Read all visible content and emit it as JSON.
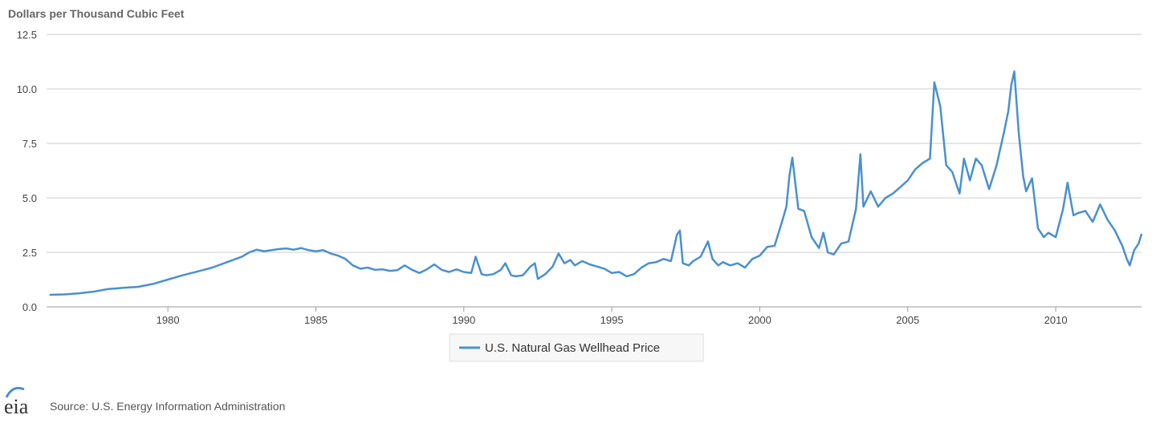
{
  "chart_data": {
    "type": "line",
    "y_unit_label": "Dollars per Thousand Cubic Feet",
    "ylim": [
      0,
      12.5
    ],
    "y_ticks": [
      "0.0",
      "2.5",
      "5.0",
      "7.5",
      "10.0",
      "12.5"
    ],
    "xlim": [
      1975.9,
      2012.9
    ],
    "x_ticks": [
      "1980",
      "1985",
      "1990",
      "1995",
      "2000",
      "2005",
      "2010"
    ],
    "grid": true,
    "legend_position": "bottom-center",
    "series": [
      {
        "name": "U.S. Natural Gas Wellhead Price",
        "color": "#4a90d0",
        "points": [
          [
            1976.0,
            0.55
          ],
          [
            1976.5,
            0.57
          ],
          [
            1977.0,
            0.62
          ],
          [
            1977.5,
            0.7
          ],
          [
            1978.0,
            0.82
          ],
          [
            1978.5,
            0.87
          ],
          [
            1979.0,
            0.92
          ],
          [
            1979.5,
            1.05
          ],
          [
            1980.0,
            1.25
          ],
          [
            1980.5,
            1.45
          ],
          [
            1981.0,
            1.62
          ],
          [
            1981.5,
            1.8
          ],
          [
            1982.0,
            2.05
          ],
          [
            1982.5,
            2.3
          ],
          [
            1982.75,
            2.5
          ],
          [
            1983.0,
            2.62
          ],
          [
            1983.25,
            2.55
          ],
          [
            1983.5,
            2.6
          ],
          [
            1983.75,
            2.65
          ],
          [
            1984.0,
            2.68
          ],
          [
            1984.25,
            2.62
          ],
          [
            1984.5,
            2.7
          ],
          [
            1984.75,
            2.6
          ],
          [
            1985.0,
            2.55
          ],
          [
            1985.25,
            2.6
          ],
          [
            1985.5,
            2.45
          ],
          [
            1985.75,
            2.35
          ],
          [
            1986.0,
            2.2
          ],
          [
            1986.25,
            1.9
          ],
          [
            1986.5,
            1.75
          ],
          [
            1986.75,
            1.8
          ],
          [
            1987.0,
            1.7
          ],
          [
            1987.25,
            1.72
          ],
          [
            1987.5,
            1.65
          ],
          [
            1987.75,
            1.68
          ],
          [
            1988.0,
            1.9
          ],
          [
            1988.25,
            1.7
          ],
          [
            1988.5,
            1.55
          ],
          [
            1988.75,
            1.72
          ],
          [
            1989.0,
            1.95
          ],
          [
            1989.25,
            1.7
          ],
          [
            1989.5,
            1.6
          ],
          [
            1989.75,
            1.72
          ],
          [
            1990.0,
            1.6
          ],
          [
            1990.25,
            1.55
          ],
          [
            1990.4,
            2.3
          ],
          [
            1990.6,
            1.5
          ],
          [
            1990.75,
            1.45
          ],
          [
            1991.0,
            1.5
          ],
          [
            1991.25,
            1.7
          ],
          [
            1991.4,
            2.0
          ],
          [
            1991.6,
            1.45
          ],
          [
            1991.75,
            1.4
          ],
          [
            1992.0,
            1.45
          ],
          [
            1992.25,
            1.85
          ],
          [
            1992.4,
            2.0
          ],
          [
            1992.5,
            1.28
          ],
          [
            1992.75,
            1.5
          ],
          [
            1993.0,
            1.85
          ],
          [
            1993.2,
            2.45
          ],
          [
            1993.4,
            2.0
          ],
          [
            1993.6,
            2.15
          ],
          [
            1993.75,
            1.9
          ],
          [
            1994.0,
            2.1
          ],
          [
            1994.25,
            1.95
          ],
          [
            1994.5,
            1.85
          ],
          [
            1994.75,
            1.75
          ],
          [
            1995.0,
            1.55
          ],
          [
            1995.25,
            1.6
          ],
          [
            1995.5,
            1.4
          ],
          [
            1995.75,
            1.5
          ],
          [
            1996.0,
            1.8
          ],
          [
            1996.25,
            2.0
          ],
          [
            1996.5,
            2.05
          ],
          [
            1996.75,
            2.2
          ],
          [
            1997.0,
            2.1
          ],
          [
            1997.2,
            3.3
          ],
          [
            1997.3,
            3.5
          ],
          [
            1997.4,
            2.0
          ],
          [
            1997.6,
            1.9
          ],
          [
            1997.75,
            2.1
          ],
          [
            1998.0,
            2.3
          ],
          [
            1998.25,
            3.0
          ],
          [
            1998.4,
            2.2
          ],
          [
            1998.6,
            1.9
          ],
          [
            1998.75,
            2.05
          ],
          [
            1999.0,
            1.9
          ],
          [
            1999.25,
            2.0
          ],
          [
            1999.5,
            1.8
          ],
          [
            1999.75,
            2.2
          ],
          [
            2000.0,
            2.35
          ],
          [
            2000.25,
            2.75
          ],
          [
            2000.5,
            2.8
          ],
          [
            2000.75,
            3.9
          ],
          [
            2000.9,
            4.6
          ],
          [
            2001.0,
            6.0
          ],
          [
            2001.1,
            6.85
          ],
          [
            2001.3,
            4.5
          ],
          [
            2001.5,
            4.4
          ],
          [
            2001.75,
            3.2
          ],
          [
            2002.0,
            2.7
          ],
          [
            2002.15,
            3.4
          ],
          [
            2002.3,
            2.5
          ],
          [
            2002.5,
            2.4
          ],
          [
            2002.75,
            2.9
          ],
          [
            2003.0,
            3.0
          ],
          [
            2003.25,
            4.5
          ],
          [
            2003.4,
            7.0
          ],
          [
            2003.5,
            4.6
          ],
          [
            2003.75,
            5.3
          ],
          [
            2004.0,
            4.6
          ],
          [
            2004.25,
            5.0
          ],
          [
            2004.5,
            5.2
          ],
          [
            2004.75,
            5.5
          ],
          [
            2005.0,
            5.8
          ],
          [
            2005.25,
            6.3
          ],
          [
            2005.5,
            6.6
          ],
          [
            2005.75,
            6.8
          ],
          [
            2005.9,
            10.3
          ],
          [
            2006.1,
            9.2
          ],
          [
            2006.3,
            6.5
          ],
          [
            2006.5,
            6.2
          ],
          [
            2006.75,
            5.2
          ],
          [
            2006.9,
            6.8
          ],
          [
            2007.1,
            5.8
          ],
          [
            2007.3,
            6.8
          ],
          [
            2007.5,
            6.5
          ],
          [
            2007.75,
            5.4
          ],
          [
            2008.0,
            6.5
          ],
          [
            2008.25,
            8.0
          ],
          [
            2008.4,
            9.0
          ],
          [
            2008.5,
            10.2
          ],
          [
            2008.6,
            10.8
          ],
          [
            2008.75,
            8.0
          ],
          [
            2008.9,
            6.0
          ],
          [
            2009.0,
            5.3
          ],
          [
            2009.2,
            5.9
          ],
          [
            2009.4,
            3.6
          ],
          [
            2009.6,
            3.2
          ],
          [
            2009.75,
            3.4
          ],
          [
            2010.0,
            3.2
          ],
          [
            2010.25,
            4.5
          ],
          [
            2010.4,
            5.7
          ],
          [
            2010.6,
            4.2
          ],
          [
            2010.75,
            4.3
          ],
          [
            2011.0,
            4.4
          ],
          [
            2011.25,
            3.9
          ],
          [
            2011.5,
            4.7
          ],
          [
            2011.75,
            4.0
          ],
          [
            2012.0,
            3.5
          ],
          [
            2012.25,
            2.8
          ],
          [
            2012.4,
            2.2
          ],
          [
            2012.5,
            1.9
          ],
          [
            2012.65,
            2.6
          ],
          [
            2012.8,
            2.9
          ],
          [
            2012.9,
            3.35
          ]
        ]
      }
    ]
  },
  "footer": {
    "logo_text": "eia",
    "source": "Source: U.S. Energy Information Administration"
  }
}
